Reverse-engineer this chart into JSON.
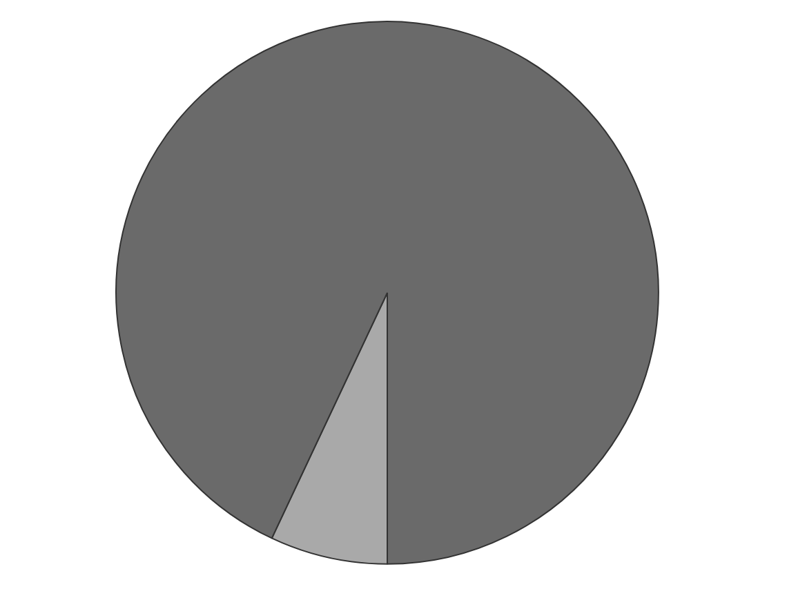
{
  "chart_data": {
    "type": "pie",
    "categories": [
      null,
      null
    ],
    "values": [
      7,
      93
    ],
    "colors": [
      "#a9a9a9",
      "#6a6a6a"
    ]
  }
}
